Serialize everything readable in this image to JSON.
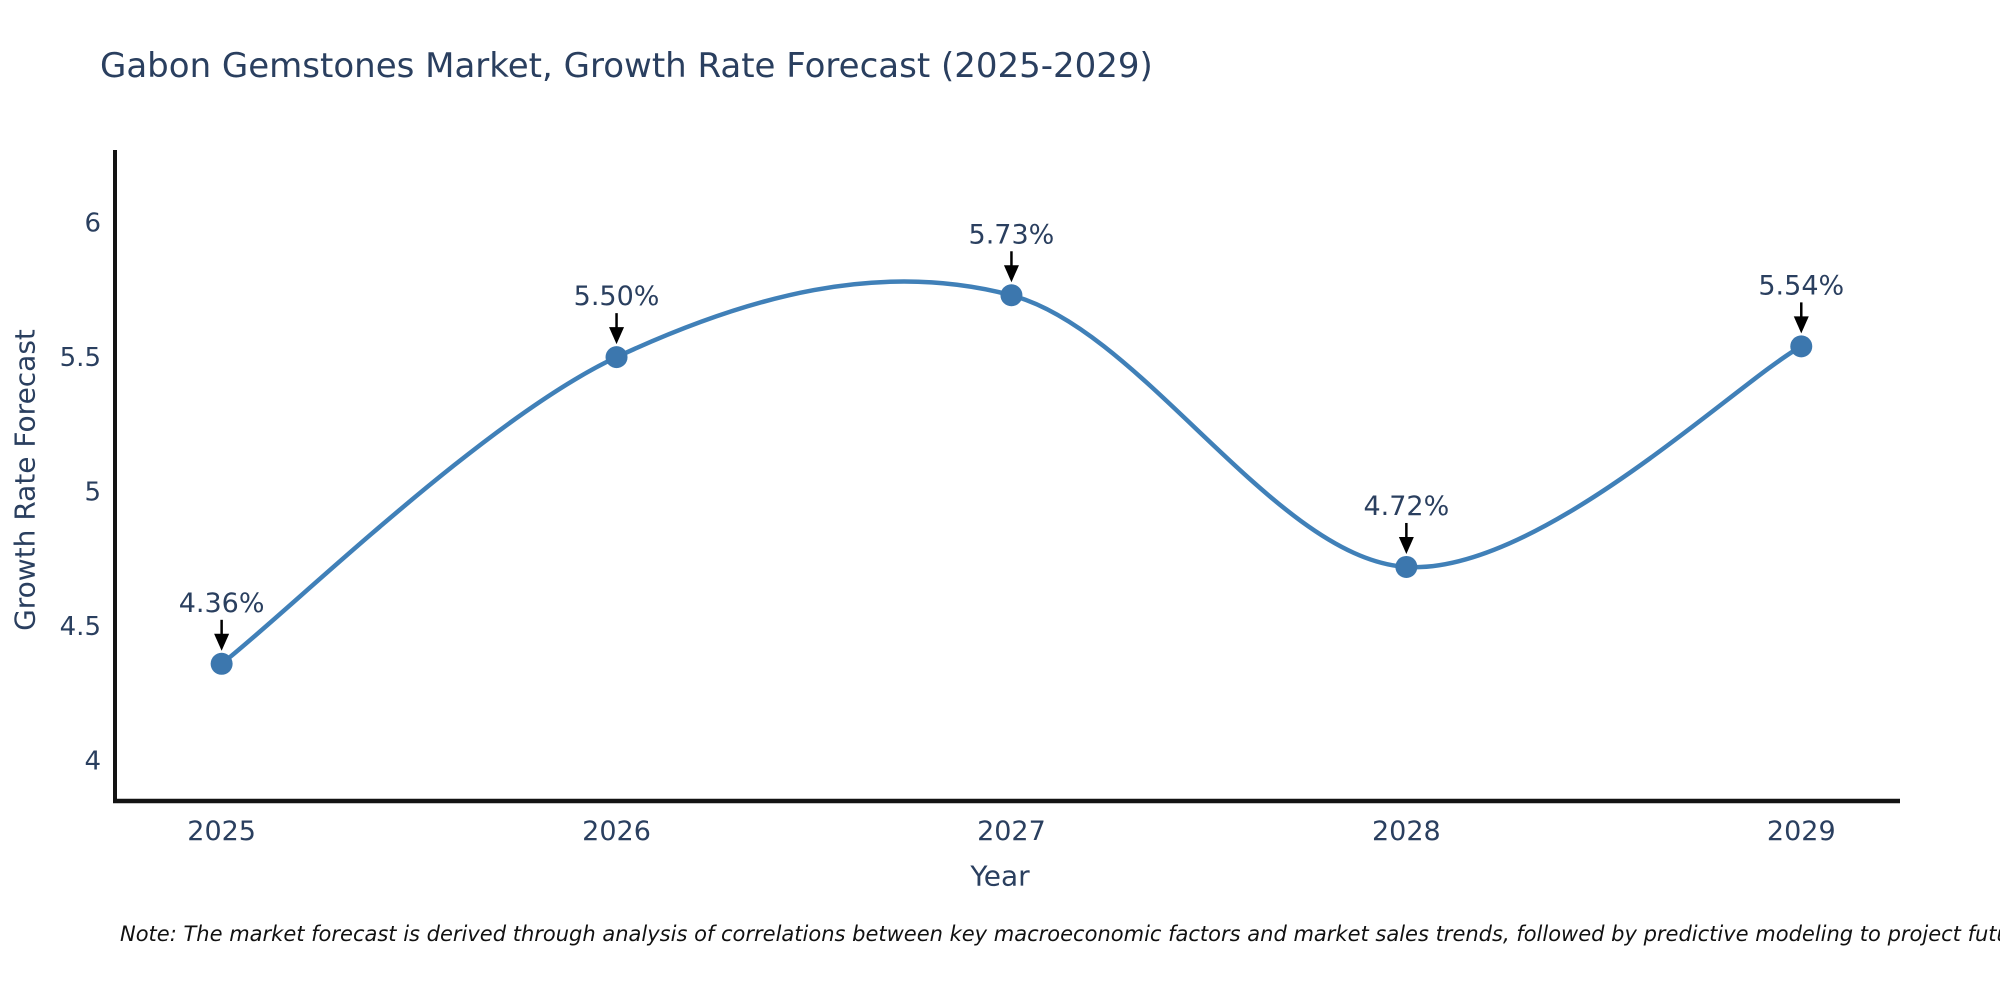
{
  "page": {
    "title": "Gabon Gemstones Market, Growth Rate Forecast (2025-2029)",
    "note": "Note: The market forecast is derived through analysis of correlations between key macroeconomic factors and market sales trends, followed by predictive modeling to project future sales"
  },
  "colors": {
    "title_text": "#2a3f5f",
    "tick_text": "#2a3f5f",
    "axis": "#131313",
    "line": "#4080b8",
    "marker": "#3c77ae",
    "annotation_text": "#2a3f5f",
    "arrow": "#000000",
    "note_text": "#111111",
    "background": "#ffffff"
  },
  "chart_data": {
    "type": "line",
    "title": "Gabon Gemstones Market, Growth Rate Forecast (2025-2029)",
    "x": [
      2025,
      2026,
      2027,
      2028,
      2029
    ],
    "y": [
      4.36,
      5.5,
      5.73,
      4.72,
      5.54
    ],
    "point_labels": [
      "4.36%",
      "5.50%",
      "5.73%",
      "4.72%",
      "5.54%"
    ],
    "xlabel": "Year",
    "ylabel": "Growth Rate Forecast",
    "xtick_labels": [
      "2025",
      "2026",
      "2027",
      "2028",
      "2029"
    ],
    "ytick_values": [
      4,
      4.5,
      5,
      5.5,
      6
    ],
    "ytick_labels": [
      "4",
      "4.5",
      "5",
      "5.5",
      "6"
    ],
    "xlim": [
      2024.73,
      2029.25
    ],
    "ylim": [
      3.85,
      6.27
    ],
    "line_shape": "spline",
    "grid": false,
    "legend": false
  }
}
